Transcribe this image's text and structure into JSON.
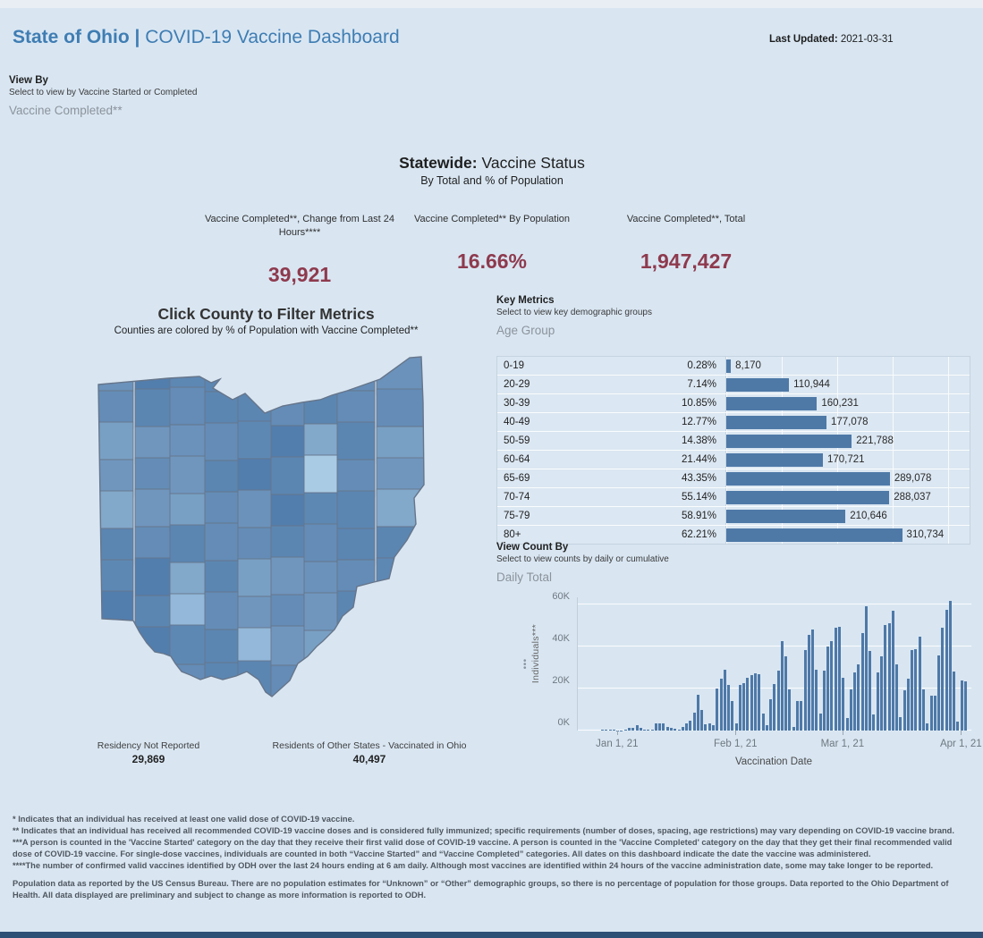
{
  "header": {
    "title_bold": "State of Ohio |",
    "title_rest": " COVID-19 Vaccine Dashboard",
    "last_updated_label": "Last Updated:",
    "last_updated_value": " 2021-03-31"
  },
  "view_by": {
    "label": "View By",
    "hint": "Select to view by Vaccine Started or Completed",
    "value": "Vaccine Completed**"
  },
  "statewide": {
    "title_bold": "Statewide:",
    "title_rest": " Vaccine Status",
    "subtitle": "By Total and % of Population",
    "kpis": [
      {
        "label": "Vaccine Completed**, Change from Last 24 Hours****",
        "value": "39,921"
      },
      {
        "label": "Vaccine Completed** By Population",
        "value": "16.66%"
      },
      {
        "label": "Vaccine Completed**, Total",
        "value": "1,947,427"
      }
    ]
  },
  "map_section": {
    "title": "Click County to Filter Metrics",
    "subtitle": "Counties are colored by % of Population with Vaccine Completed**",
    "stats": [
      {
        "label": "Residency Not Reported",
        "value": "29,869"
      },
      {
        "label": "Residents of Other States - Vaccinated in Ohio",
        "value": "40,497"
      }
    ],
    "palette": [
      "#6b92bb",
      "#5b86b2",
      "#78a0c4",
      "#527eae",
      "#82a8ca",
      "#648cb7",
      "#5d88b4",
      "#7096be"
    ],
    "light_counties": [
      "#a9cbe4",
      "#93b8d9"
    ],
    "outline_color": "#66758a"
  },
  "key_metrics": {
    "title": "Key Metrics",
    "hint": "Select to view key demographic groups",
    "value": "Age Group"
  },
  "view_count_by": {
    "title": "View Count By",
    "hint": "Select to view counts by daily or cumulative",
    "value": "Daily Total"
  },
  "chart_data": [
    {
      "type": "bar",
      "name": "vaccine-completed-by-age-group",
      "orientation": "horizontal",
      "categories": [
        "0-19",
        "20-29",
        "30-39",
        "40-49",
        "50-59",
        "60-64",
        "65-69",
        "70-74",
        "75-79",
        "80+"
      ],
      "percent_of_population": [
        "0.28%",
        "7.14%",
        "10.85%",
        "12.77%",
        "14.38%",
        "21.44%",
        "43.35%",
        "55.14%",
        "58.91%",
        "62.21%"
      ],
      "values": [
        8170,
        110944,
        160231,
        177078,
        221788,
        170721,
        289078,
        288037,
        210646,
        310734
      ],
      "value_labels": [
        "8,170",
        "110,944",
        "160,231",
        "177,078",
        "221,788",
        "170,721",
        "289,078",
        "288,037",
        "210,646",
        "310,734"
      ],
      "xmax": 430000,
      "bar_color": "#4e79a7",
      "grid": true
    },
    {
      "type": "bar",
      "name": "daily-individuals-vaccine-completed",
      "xlabel": "Vaccination Date",
      "ylabel": "Individuals***",
      "yticks": [
        "0K",
        "20K",
        "40K",
        "60K"
      ],
      "ylim_k": [
        0,
        63
      ],
      "start_date": "2020-12-22",
      "x_tick_labels": [
        "Jan 1, 21",
        "Feb 1, 21",
        "Mar 1, 21",
        "Apr 1, 21"
      ],
      "x_tick_indices": [
        10,
        41,
        69,
        100
      ],
      "values_k": [
        0,
        0,
        0,
        0,
        0,
        0,
        0.4,
        0.6,
        0.5,
        0.3,
        0.2,
        0.1,
        0.3,
        1.2,
        1.4,
        2.6,
        1.2,
        0.5,
        0.4,
        0.3,
        3.4,
        3.5,
        3.6,
        1.6,
        1.1,
        1.0,
        0.5,
        1.5,
        3.4,
        4.6,
        8.6,
        16.9,
        9.6,
        3.1,
        3.3,
        2.4,
        20.2,
        24.6,
        29.0,
        21.5,
        14.0,
        3.2,
        21.6,
        22.6,
        25.2,
        26.3,
        27.2,
        26.7,
        8.0,
        2.4,
        15.0,
        22.0,
        28.6,
        42.5,
        35.4,
        19.4,
        1.6,
        14.2,
        14.2,
        38.1,
        45.5,
        48.0,
        29.0,
        8.2,
        28.5,
        40.0,
        42.6,
        49.0,
        49.3,
        25.0,
        5.8,
        19.4,
        27.6,
        31.7,
        46.6,
        59.0,
        37.7,
        7.5,
        27.6,
        35.5,
        50.2,
        51.2,
        57.0,
        31.6,
        6.3,
        19.2,
        24.5,
        38.5,
        38.6,
        44.5,
        19.7,
        3.2,
        16.7,
        16.7,
        35.8,
        48.8,
        57.5,
        61.5,
        28.2,
        4.2,
        24.0,
        23.5,
        0
      ],
      "bar_color": "#4e79a7",
      "grid": true,
      "legend": "none"
    }
  ],
  "footnotes": [
    "* Indicates that an individual has received at least one valid dose of COVID-19 vaccine.",
    "** Indicates that an individual has received all recommended COVID-19 vaccine doses and is considered fully immunized; specific requirements (number of doses, spacing, age restrictions) may vary depending on COVID-19 vaccine brand.",
    "***A person is counted in the 'Vaccine Started' category on the day that they receive their first valid dose of COVID-19 vaccine.  A person is counted in the 'Vaccine Completed' category on the day that they get their final recommended valid dose of COVID-19 vaccine. For single-dose vaccines, individuals are counted in both “Vaccine Started” and “Vaccine Completed” categories. All dates on this dashboard indicate the date the vaccine was administered.",
    "****The number of confirmed valid vaccines identified by ODH over the last 24 hours ending at 6 am daily. Although most vaccines are identified within 24 hours of the vaccine administration date, some may take longer to be reported.",
    "Population data as reported by the US Census Bureau. There are no population estimates for “Unknown” or “Other” demographic groups, so there is no percentage of population for those groups.  Data reported to the Ohio Department of Health.  All data displayed are preliminary and subject to change as more information is reported to ODH."
  ],
  "colors": {
    "background": "#d9e6f2",
    "title_blue": "#3f7db3",
    "kpi_maroon": "#8e3a4e",
    "bar_blue": "#4e79a7",
    "footer_bar": "#2f5076"
  }
}
